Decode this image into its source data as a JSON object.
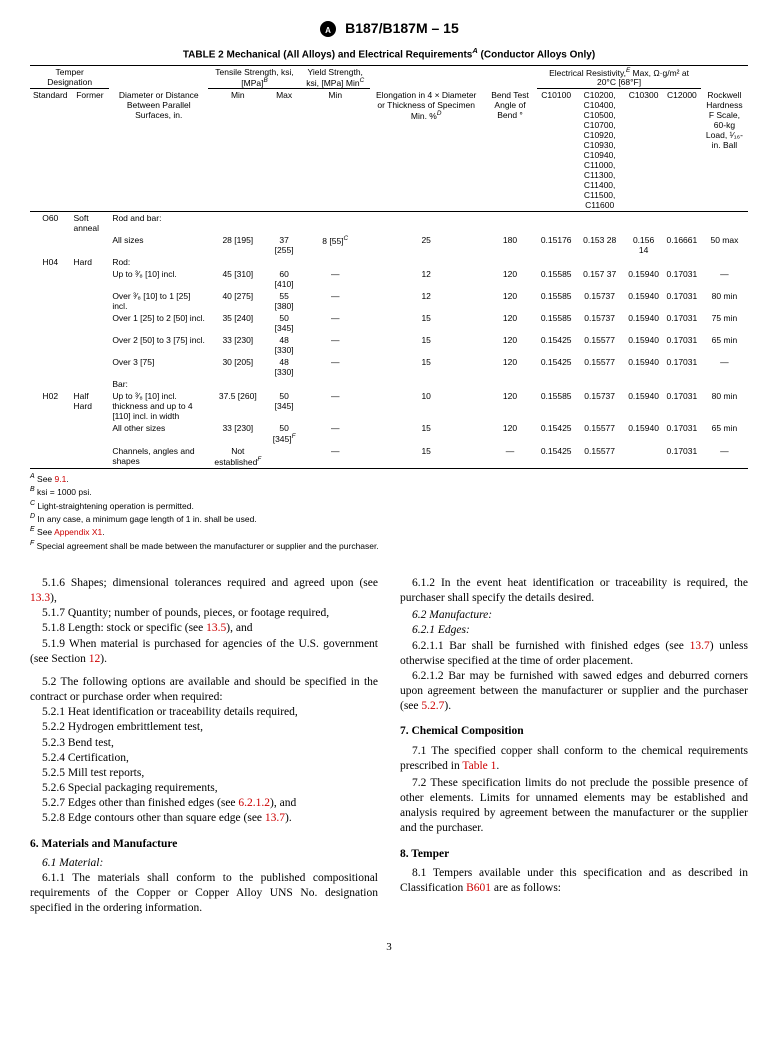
{
  "doc_header": "B187/B187M – 15",
  "table_title": "TABLE 2 Mechanical (All Alloys) and Electrical Requirements",
  "table_title_sup": "A",
  "table_title_tail": " (Conductor Alloys Only)",
  "col_headers": {
    "temper_des": "Temper Designation",
    "tensile": "Tensile Strength, ksi, [MPa]",
    "tensile_sup": "B",
    "yield": "Yield Strength, ksi, [MPa] Min",
    "yield_sup": "C",
    "standard": "Standard",
    "former": "Former",
    "diam": "Diameter or Distance Between Parallel Surfaces, in.",
    "min": "Min",
    "max": "Max",
    "elong": "Elongation in 4 × Diameter or Thickness of Specimen Min. %",
    "elong_sup": "D",
    "bend": "Bend Test Angle of Bend °",
    "resist": "Electrical Resistivity,",
    "resist_sup": "E",
    "resist_tail": " Max, Ω·g/m² at 20°C [68°F]",
    "c10100": "C10100",
    "cgroup": "C10200, C10400, C10500, C10700, C10920, C10930, C10940, C11000, C11300, C11400, C11500, C11600",
    "c10300": "C10300",
    "c12000": "C12000",
    "rockwell": "Rockwell Hardness F Scale, 60-kg Load, ¹⁄₁₆-in. Ball"
  },
  "rows": [
    {
      "std": "O60",
      "former": "Soft anneal",
      "diam": "Rod and bar:"
    },
    {
      "diam": "All sizes",
      "min": "28 [195]",
      "max": "37 [255]",
      "yield": "8 [55]",
      "yield_sup": "C",
      "elong": "25",
      "bend": "180",
      "c10100": "0.15176",
      "cgroup": "0.153 28",
      "c10300": "0.156 14",
      "c12000": "0.16661",
      "rock": "50 max"
    },
    {
      "std": "H04",
      "former": "Hard",
      "diam": "Rod:"
    },
    {
      "diam": "Up to ³⁄₈ [10] incl.",
      "min": "45 [310]",
      "max": "60 [410]",
      "yield": "—",
      "elong": "12",
      "bend": "120",
      "c10100": "0.15585",
      "cgroup": "0.157 37",
      "c10300": "0.15940",
      "c12000": "0.17031",
      "rock": "—"
    },
    {
      "diam": "Over ³⁄₈ [10] to 1 [25] incl.",
      "min": "40 [275]",
      "max": "55 [380]",
      "yield": "—",
      "elong": "12",
      "bend": "120",
      "c10100": "0.15585",
      "cgroup": "0.15737",
      "c10300": "0.15940",
      "c12000": "0.17031",
      "rock": "80 min"
    },
    {
      "diam": "Over 1 [25] to 2 [50] incl.",
      "min": "35 [240]",
      "max": "50 [345]",
      "yield": "—",
      "elong": "15",
      "bend": "120",
      "c10100": "0.15585",
      "cgroup": "0.15737",
      "c10300": "0.15940",
      "c12000": "0.17031",
      "rock": "75 min"
    },
    {
      "diam": "Over 2 [50] to 3 [75] incl.",
      "min": "33 [230]",
      "max": "48 [330]",
      "yield": "—",
      "elong": "15",
      "bend": "120",
      "c10100": "0.15425",
      "cgroup": "0.15577",
      "c10300": "0.15940",
      "c12000": "0.17031",
      "rock": "65 min"
    },
    {
      "diam": "Over 3 [75]",
      "min": "30 [205]",
      "max": "48 [330]",
      "yield": "—",
      "elong": "15",
      "bend": "120",
      "c10100": "0.15425",
      "cgroup": "0.15577",
      "c10300": "0.15940",
      "c12000": "0.17031",
      "rock": "—"
    },
    {
      "diam": "Bar:"
    },
    {
      "std": "H02",
      "former": "Half Hard",
      "diam": "Up to ³⁄₈ [10] incl. thickness and up to 4 [110] incl. in width",
      "min": "37.5 [260]",
      "max": "50 [345]",
      "yield": "—",
      "elong": "10",
      "bend": "120",
      "c10100": "0.15585",
      "cgroup": "0.15737",
      "c10300": "0.15940",
      "c12000": "0.17031",
      "rock": "80 min"
    },
    {
      "diam": "All other sizes",
      "min": "33 [230]",
      "max": "50 [345]",
      "max_sup": "F",
      "yield": "—",
      "elong": "15",
      "bend": "120",
      "c10100": "0.15425",
      "cgroup": "0.15577",
      "c10300": "0.15940",
      "c12000": "0.17031",
      "rock": "65 min"
    },
    {
      "diam": "Channels, angles and shapes",
      "min": "Not established",
      "min_sup": "F",
      "max": "",
      "yield": "—",
      "elong": "15",
      "bend": "—",
      "c10100": "0.15425",
      "cgroup": "0.15577",
      "c10300": "",
      "c12000": "0.17031",
      "rock": "—"
    }
  ],
  "footnotes": {
    "A_pre": " See ",
    "A_link": "9.1",
    "B": " ksi = 1000 psi.",
    "C": " Light-straightening operation is permitted.",
    "D": " In any case, a minimum gage length of 1 in. shall be used.",
    "E_pre": " See ",
    "E_link": "Appendix X1",
    "F": " Special agreement shall be made between the manufacturer or supplier and the purchaser."
  },
  "left_col": {
    "p516_a": "5.1.6 Shapes; dimensional tolerances required and agreed upon (see ",
    "p516_link": "13.3",
    "p516_b": "),",
    "p517": "5.1.7 Quantity; number of pounds, pieces, or footage required,",
    "p518_a": "5.1.8 Length: stock or specific (see ",
    "p518_link": "13.5",
    "p518_b": "), and",
    "p519_a": "5.1.9 When material is purchased for agencies of the U.S. government (see Section ",
    "p519_link": "12",
    "p519_b": ").",
    "p52": "5.2 The following options are available and should be specified in the contract or purchase order when required:",
    "p521": "5.2.1 Heat identification or traceability details required,",
    "p522": "5.2.2 Hydrogen embrittlement test,",
    "p523": "5.2.3 Bend test,",
    "p524": "5.2.4 Certification,",
    "p525": "5.2.5 Mill test reports,",
    "p526": "5.2.6 Special packaging requirements,",
    "p527_a": "5.2.7 Edges other than finished edges (see ",
    "p527_link": "6.2.1.2",
    "p527_b": "), and",
    "p528_a": "5.2.8 Edge contours other than square edge (see ",
    "p528_link": "13.7",
    "p528_b": ").",
    "h6": "6. Materials and Manufacture",
    "p61": "6.1 Material:",
    "p611": "6.1.1 The materials shall conform to the published compositional requirements of the Copper or Copper Alloy UNS No. designation specified in the ordering information."
  },
  "right_col": {
    "p612": "6.1.2 In the event heat identification or traceability is required, the purchaser shall specify the details desired.",
    "p62": "6.2 Manufacture:",
    "p621": "6.2.1 Edges:",
    "p6211_a": "6.2.1.1 Bar shall be furnished with finished edges (see ",
    "p6211_link": "13.7",
    "p6211_b": ") unless otherwise specified at the time of order placement.",
    "p6212_a": "6.2.1.2 Bar may be furnished with sawed edges and deburred corners upon agreement between the manufacturer or supplier and the purchaser (see ",
    "p6212_link": "5.2.7",
    "p6212_b": ").",
    "h7": "7. Chemical Composition",
    "p71_a": "7.1 The specified copper shall conform to the chemical requirements prescribed in ",
    "p71_link": "Table 1",
    "p71_b": ".",
    "p72": "7.2 These specification limits do not preclude the possible presence of other elements. Limits for unnamed elements may be established and analysis required by agreement between the manufacturer or the supplier and the purchaser.",
    "h8": "8. Temper",
    "p81_a": "8.1 Tempers available under this specification and as described in Classification ",
    "p81_link": "B601",
    "p81_b": " are as follows:"
  },
  "page_number": "3"
}
